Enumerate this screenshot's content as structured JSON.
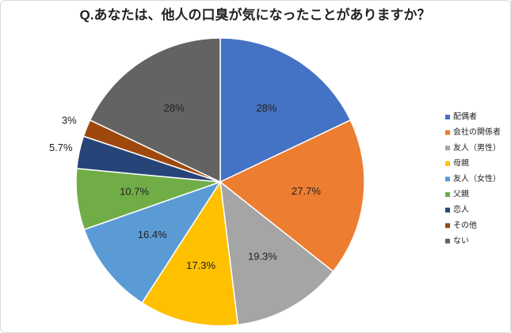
{
  "chart_data": {
    "type": "pie",
    "title": "Q.あなたは、他人の口臭が気になったことがありますか？",
    "categories": [
      "配偶者",
      "会社の関係者",
      "友人（男性）",
      "母親",
      "友人（女性）",
      "父親",
      "恋人",
      "その他",
      "ない"
    ],
    "values": [
      28,
      27.7,
      19.3,
      17.3,
      16.4,
      10.7,
      5.7,
      3,
      28
    ],
    "value_labels": [
      "28%",
      "27.7%",
      "19.3%",
      "17.3%",
      "16.4%",
      "10.7%",
      "5.7%",
      "3%",
      "28%"
    ],
    "colors": [
      "#4472c4",
      "#ed7d31",
      "#a5a5a5",
      "#ffc000",
      "#5b9bd5",
      "#70ad47",
      "#264478",
      "#9e480e",
      "#636363"
    ],
    "legend": "right"
  }
}
